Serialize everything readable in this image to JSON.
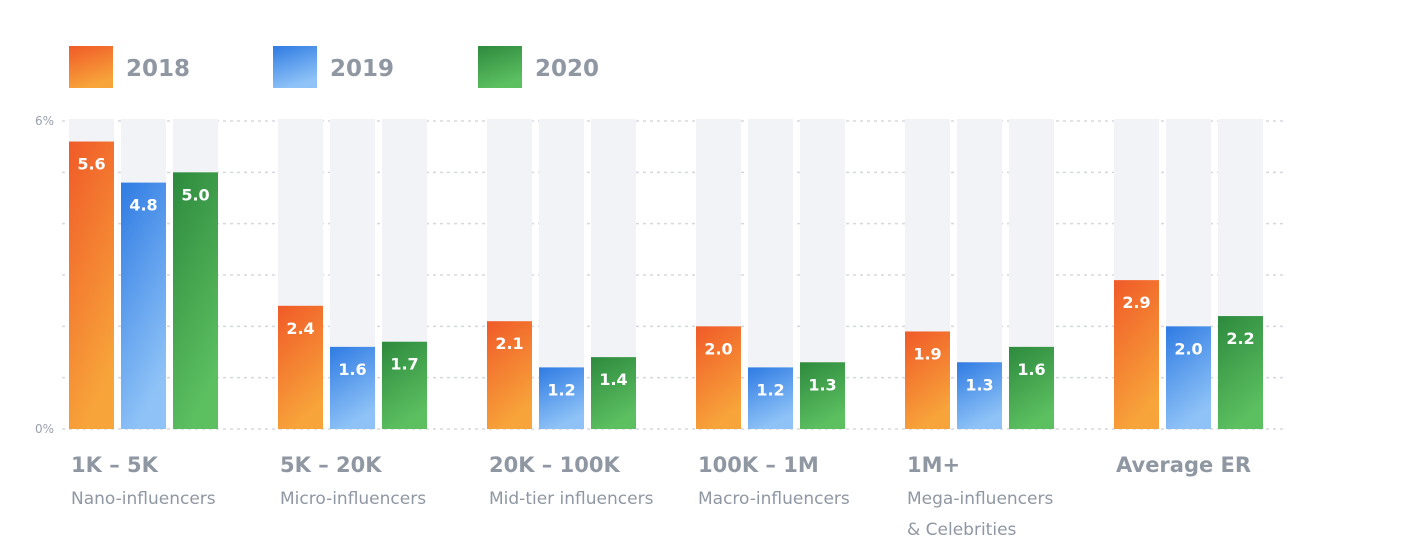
{
  "chart_data": {
    "type": "bar",
    "categories": [
      {
        "label": "1K – 5K",
        "sub": [
          "Nano-influencers"
        ]
      },
      {
        "label": "5K – 20K",
        "sub": [
          "Micro-influencers"
        ]
      },
      {
        "label": "20K – 100K",
        "sub": [
          "Mid-tier influencers"
        ]
      },
      {
        "label": "100K – 1M",
        "sub": [
          "Macro-influencers"
        ]
      },
      {
        "label": "1M+",
        "sub": [
          "Mega-influencers",
          "& Celebrities"
        ]
      },
      {
        "label": "Average ER",
        "sub": []
      }
    ],
    "series": [
      {
        "name": "2018",
        "values": [
          5.6,
          2.4,
          2.1,
          2.0,
          1.9,
          2.9
        ],
        "labels": [
          "5.6",
          "2.4",
          "2.1",
          "2.0",
          "1.9",
          "2.9"
        ],
        "color_top": "#f05a28",
        "color_bottom": "#f7a43a"
      },
      {
        "name": "2019",
        "values": [
          4.8,
          1.6,
          1.2,
          1.2,
          1.3,
          2.0
        ],
        "labels": [
          "4.8",
          "1.6",
          "1.2",
          "1.2",
          "1.3",
          "2.0"
        ],
        "color_top": "#2f7be3",
        "color_bottom": "#8fc3f7"
      },
      {
        "name": "2020",
        "values": [
          5.0,
          1.7,
          1.4,
          1.3,
          1.6,
          2.2
        ],
        "labels": [
          "5.0",
          "1.7",
          "1.4",
          "1.3",
          "1.6",
          "2.2"
        ],
        "color_top": "#2d8a3e",
        "color_bottom": "#5cbf60"
      }
    ],
    "ylim": [
      0,
      6
    ],
    "yticks": [
      {
        "value": 0,
        "label": "0%"
      },
      {
        "value": 6,
        "label": "6%"
      }
    ],
    "gridlines": [
      1,
      2,
      3,
      4,
      5
    ],
    "grid": true,
    "legend_position": "top-left",
    "track_color": "#f1f3f6"
  }
}
